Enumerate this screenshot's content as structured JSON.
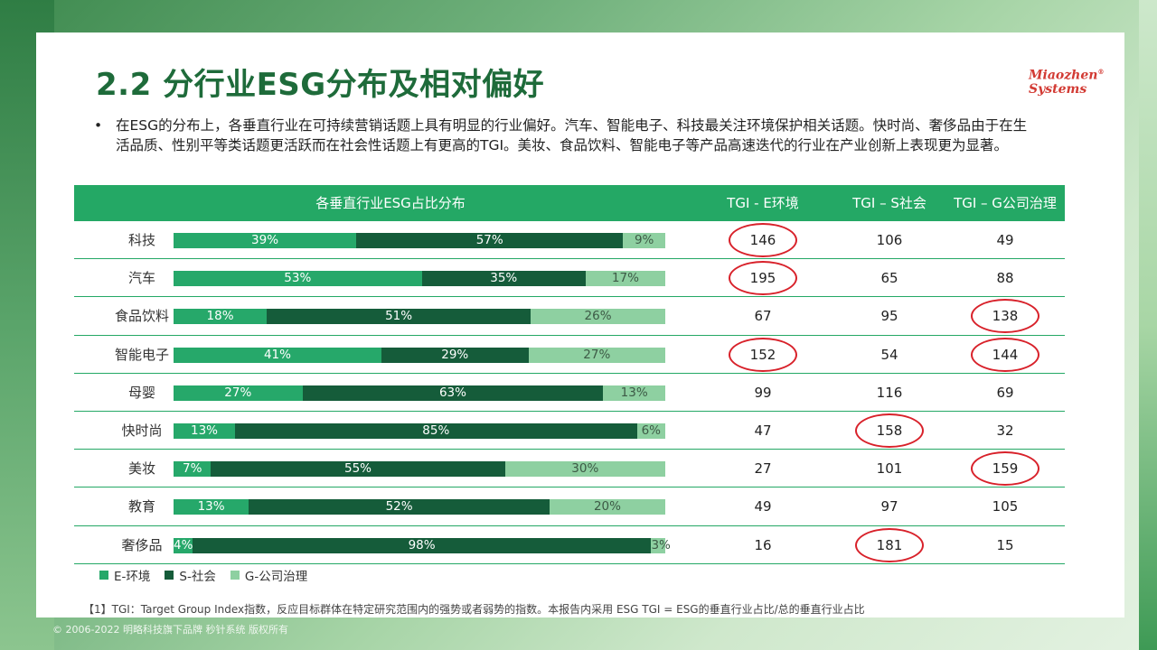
{
  "page": {
    "title": "2.2 分行业ESG分布及相对偏好",
    "logo_line1": "Miaozhen",
    "logo_line2": "Systems",
    "logo_reg": "®",
    "bullet": "•",
    "intro": "在ESG的分布上，各垂直行业在可持续营销话题上具有明显的行业偏好。汽车、智能电子、科技最关注环境保护相关话题。快时尚、奢侈品由于在生活品质、性别平等类话题更活跃而在社会性话题上有更高的TGI。美妆、食品饮料、智能电子等产品高速迭代的行业在产业创新上表现更为显著。",
    "footnote": "【1】TGI：Target Group Index指数，反应目标群体在特定研究范围内的强势或者弱势的指数。本报告内采用 ESG TGI = ESG的垂直行业占比/总的垂直行业占比",
    "copyright": "© 2006-2022 明略科技旗下品牌 秒针系统 版权所有"
  },
  "table": {
    "header_dist": "各垂直行业ESG占比分布",
    "header_e": "TGI - E环境",
    "header_s": "TGI – S社会",
    "header_g": "TGI – G公司治理"
  },
  "colors": {
    "e": "#26a86a",
    "s": "#155c3a",
    "g": "#8ed0a1",
    "highlight": "#d8212a",
    "header": "#24a865"
  },
  "chart_data": {
    "type": "bar",
    "orientation": "horizontal-stacked-100",
    "categories": [
      "科技",
      "汽车",
      "食品饮料",
      "智能电子",
      "母婴",
      "快时尚",
      "美妆",
      "教育",
      "奢侈品"
    ],
    "series": [
      {
        "name": "E-环境",
        "values": [
          39,
          53,
          18,
          41,
          27,
          13,
          7,
          13,
          4
        ],
        "labels": [
          "39%",
          "53%",
          "18%",
          "41%",
          "27%",
          "13%",
          "7%",
          "13%",
          "4%"
        ]
      },
      {
        "name": "S-社会",
        "values": [
          57,
          35,
          51,
          29,
          63,
          85,
          55,
          52,
          98
        ],
        "labels": [
          "57%",
          "35%",
          "51%",
          "29%",
          "63%",
          "85%",
          "55%",
          "52%",
          "98%"
        ]
      },
      {
        "name": "G-公司治理",
        "values": [
          9,
          17,
          26,
          27,
          13,
          6,
          30,
          20,
          3
        ],
        "labels": [
          "9%",
          "17%",
          "26%",
          "27%",
          "13%",
          "6%",
          "30%",
          "20%",
          "3%"
        ]
      }
    ],
    "tgi": {
      "e": [
        "146",
        "195",
        "67",
        "152",
        "99",
        "47",
        "27",
        "49",
        "16"
      ],
      "s": [
        "106",
        "65",
        "95",
        "54",
        "116",
        "158",
        "101",
        "97",
        "181"
      ],
      "g": [
        "49",
        "88",
        "138",
        "144",
        "69",
        "32",
        "159",
        "105",
        "15"
      ]
    },
    "highlighted": {
      "e": [
        true,
        true,
        false,
        true,
        false,
        false,
        false,
        false,
        false
      ],
      "s": [
        false,
        false,
        false,
        false,
        false,
        true,
        false,
        false,
        true
      ],
      "g": [
        false,
        false,
        true,
        true,
        false,
        false,
        true,
        false,
        false
      ]
    },
    "legend_position": "bottom-left"
  }
}
